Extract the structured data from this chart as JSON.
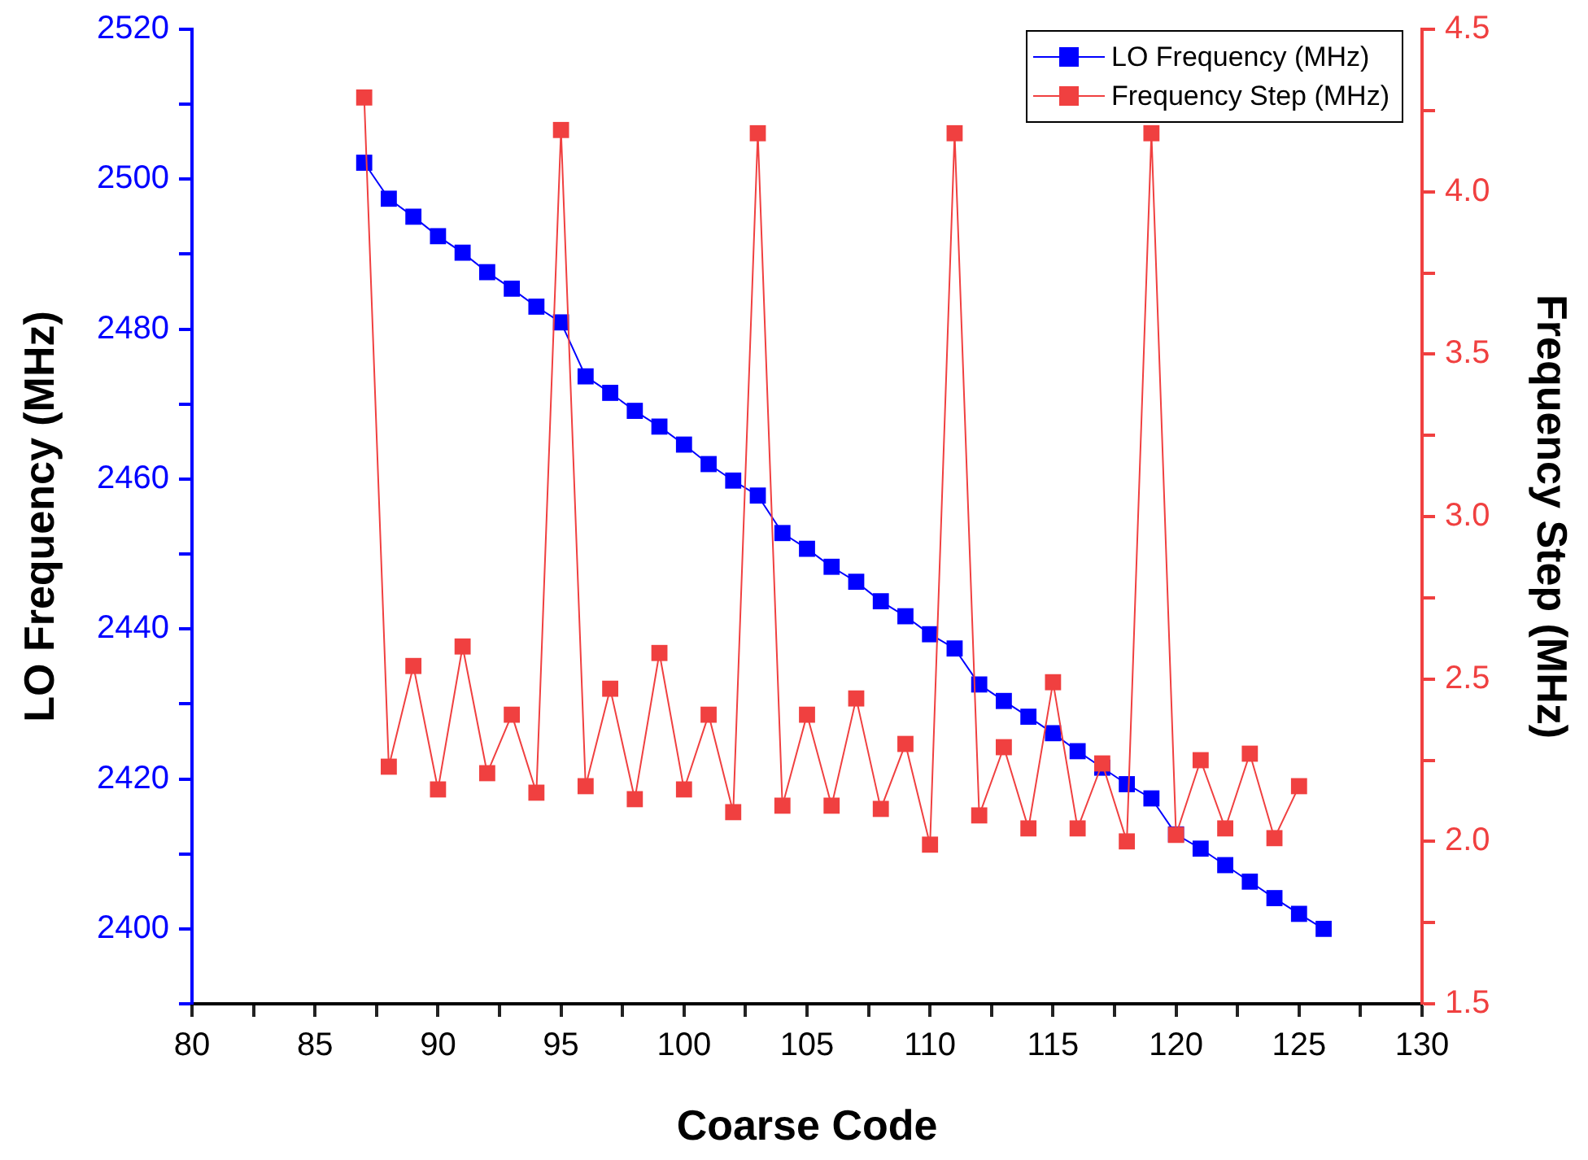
{
  "chart_data": {
    "type": "line",
    "xlabel": "Coarse Code",
    "ylabel": "LO Frequency (MHz)",
    "y2label": "Frequency Step (MHz)",
    "x": [
      87,
      88,
      89,
      90,
      91,
      92,
      93,
      94,
      95,
      96,
      97,
      98,
      99,
      100,
      101,
      102,
      103,
      104,
      105,
      106,
      107,
      108,
      109,
      110,
      111,
      112,
      113,
      114,
      115,
      116,
      117,
      118,
      119,
      120,
      121,
      122,
      123,
      124,
      125,
      126
    ],
    "series": [
      {
        "name": "LO Frequency (MHz)",
        "color": "#0000ff",
        "values": [
          2502.2,
          2497.4,
          2495.0,
          2492.4,
          2490.2,
          2487.6,
          2485.4,
          2483.0,
          2480.9,
          2473.7,
          2471.5,
          2469.1,
          2467.0,
          2464.6,
          2462.0,
          2459.8,
          2457.8,
          2452.8,
          2450.7,
          2448.3,
          2446.3,
          2443.7,
          2441.7,
          2439.3,
          2437.4,
          2432.6,
          2430.4,
          2428.3,
          2426.1,
          2423.7,
          2421.5,
          2419.3,
          2417.4,
          2412.6,
          2410.7,
          2408.5,
          2406.3,
          2404.1,
          2402.0,
          2400.0
        ]
      },
      {
        "name": "Frequency Step (MHz)",
        "color": "#f04040",
        "axis": "y2",
        "x": [
          87,
          88,
          89,
          90,
          91,
          92,
          93,
          94,
          95,
          96,
          97,
          98,
          99,
          100,
          101,
          102,
          103,
          104,
          105,
          106,
          107,
          108,
          109,
          110,
          111,
          112,
          113,
          114,
          115,
          116,
          117,
          118,
          119,
          120,
          121,
          122,
          123,
          124,
          125
        ],
        "values": [
          4.29,
          2.23,
          2.54,
          2.16,
          2.6,
          2.21,
          2.39,
          2.15,
          4.19,
          2.17,
          2.47,
          2.13,
          2.58,
          2.16,
          2.39,
          2.09,
          4.18,
          2.11,
          2.39,
          2.11,
          2.44,
          2.1,
          2.3,
          1.99,
          4.18,
          2.08,
          2.29,
          2.04,
          2.49,
          2.04,
          2.24,
          2.0,
          4.18,
          2.02,
          2.25,
          2.04,
          2.27,
          2.01,
          2.17
        ]
      }
    ],
    "xlim": [
      80,
      130
    ],
    "xticks": [
      80,
      {
        "value": 82.5,
        "label": null
      },
      85,
      {
        "value": 87.5,
        "label": null
      },
      90,
      {
        "value": 92.5,
        "label": null
      },
      95,
      {
        "value": 97.5,
        "label": null
      },
      100,
      {
        "value": 102.5,
        "label": null
      },
      105,
      {
        "value": 107.5,
        "label": null
      },
      110,
      {
        "value": 112.5,
        "label": null
      },
      115,
      {
        "value": 117.5,
        "label": null
      },
      120,
      {
        "value": 122.5,
        "label": null
      },
      125,
      {
        "value": 127.5,
        "label": null
      },
      130
    ],
    "ylim": [
      2390,
      2520
    ],
    "yticks": [
      {
        "value": 2390,
        "label": null
      },
      2400,
      {
        "value": 2410,
        "label": null
      },
      2420,
      {
        "value": 2430,
        "label": null
      },
      2440,
      {
        "value": 2450,
        "label": null
      },
      2460,
      {
        "value": 2470,
        "label": null
      },
      2480,
      {
        "value": 2490,
        "label": null
      },
      2500,
      {
        "value": 2510,
        "label": null
      },
      2520
    ],
    "y2lim": [
      1.5,
      4.5
    ],
    "y2ticks": [
      1.5,
      {
        "value": 1.75,
        "label": null
      },
      {
        "value": 2,
        "label": "2.0"
      },
      {
        "value": 2.25,
        "label": null
      },
      2.5,
      {
        "value": 2.75,
        "label": null
      },
      {
        "value": 3,
        "label": "3.0"
      },
      {
        "value": 3.25,
        "label": null
      },
      3.5,
      {
        "value": 3.75,
        "label": null
      },
      {
        "value": 4,
        "label": "4.0"
      },
      {
        "value": 4.25,
        "label": null
      },
      4.5
    ],
    "marker": "square",
    "line_style": "solid",
    "grid": false,
    "legend": "top right"
  }
}
